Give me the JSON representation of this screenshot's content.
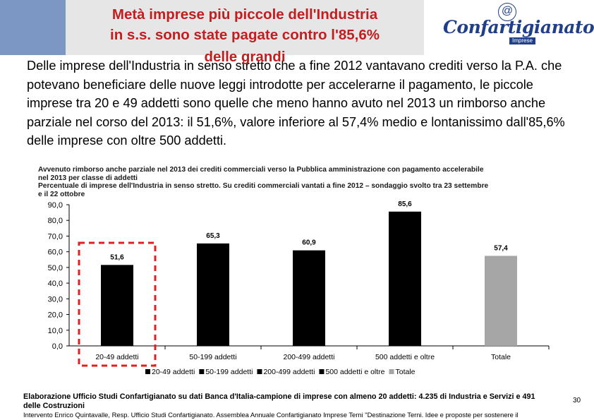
{
  "header": {
    "title": "Metà imprese più piccole dell'Industria\nin s.s. sono state pagate contro l'85,6%",
    "title_overflow": "delle grandi"
  },
  "logo": {
    "at_symbol": "@",
    "name": "Confartigianato",
    "sub": "Imprese"
  },
  "intro": "Delle imprese dell'Industria in senso stretto che a fine 2012 vantavano crediti verso la P.A. che potevano beneficiare delle nuove leggi introdotte per accelerarne il pagamento, le piccole imprese tra 20 e 49 addetti sono quelle che meno hanno avuto nel 2013 un rimborso anche parziale nel corso del 2013: il 51,6%, valore inferiore al 57,4% medio e lontanissimo dall'85,6% delle imprese con oltre 500 addetti.",
  "chart_caption": "Avvenuto rimborso anche parziale nel 2013 dei crediti commerciali verso la Pubblica amministrazione con pagamento accelerabile\nnel 2013 per classe di addetti\nPercentuale di imprese dell'Industria in senso stretto. Su crediti commerciali vantati a fine 2012 – sondaggio svolto tra 23 settembre\ne il 22 ottobre",
  "chart_data": {
    "type": "bar",
    "categories": [
      "20-49 addetti",
      "50-199 addetti",
      "200-499 addetti",
      "500 addetti e oltre",
      "Totale"
    ],
    "values": [
      51.6,
      65.3,
      60.9,
      85.6,
      57.4
    ],
    "value_labels": [
      "51,6",
      "65,3",
      "60,9",
      "85,6",
      "57,4"
    ],
    "colors": [
      "#000000",
      "#000000",
      "#000000",
      "#000000",
      "#a6a6a6"
    ],
    "ylim": [
      0,
      90
    ],
    "yticks": [
      0,
      10,
      20,
      30,
      40,
      50,
      60,
      70,
      80,
      90
    ],
    "ytick_labels": [
      "0,0",
      "10,0",
      "20,0",
      "30,0",
      "40,0",
      "50,0",
      "60,0",
      "70,0",
      "80,0",
      "90,0"
    ],
    "legend": [
      "20-49 addetti",
      "50-199 addetti",
      "200-499 addetti",
      "500 addetti e oltre",
      "Totale"
    ],
    "legend_position": "bottom",
    "highlight_category": "20-49 addetti",
    "highlight_color": "#e02020",
    "title": "",
    "xlabel": "",
    "ylabel": ""
  },
  "footnote": "Elaborazione Ufficio Studi Confartigianato su dati Banca d'Italia-campione di imprese con almeno 20 addetti: 4.235 di Industria e Servizi e 491 delle Costruzioni",
  "page_number": "30",
  "footer": "Intervento Enrico Quintavalle, Resp. Ufficio Studi Confartigianato. Assemblea Annuale Confartigianato Imprese Terni \"Destinazione Terni. Idee e proposte per sostenere il"
}
